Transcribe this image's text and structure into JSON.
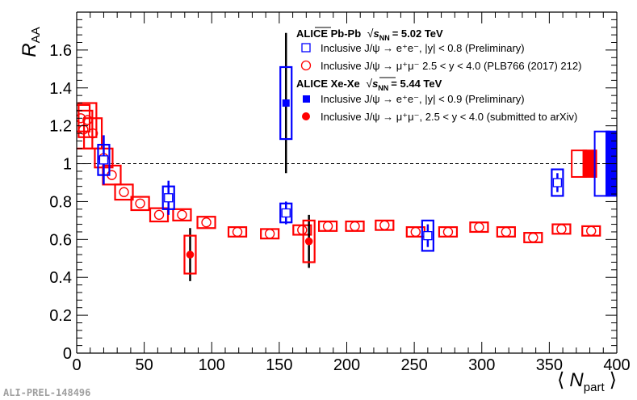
{
  "chart_data": {
    "type": "scatter",
    "xlabel_prefix": "⟨",
    "xlabel_var": "N",
    "xlabel_sub": "part",
    "xlabel_suffix": "⟩",
    "ylabel_var": "R",
    "ylabel_sub": "AA",
    "xlim": [
      0,
      400
    ],
    "ylim": [
      0,
      1.8
    ],
    "xticks": [
      0,
      50,
      100,
      150,
      200,
      250,
      300,
      350,
      400
    ],
    "yticks": [
      0,
      0.2,
      0.4,
      0.6,
      0.8,
      1,
      1.2,
      1.4,
      1.6
    ],
    "reference_line": 1,
    "watermark": "ALI-PREL-148496",
    "colors": {
      "red": "#ff0000",
      "blue": "#0000ff",
      "axis": "#000000"
    },
    "legend": {
      "header1": {
        "prefix": "ALICE Pb-Pb",
        "sqrt_sub": "NN",
        "suffix": "= 5.02 TeV"
      },
      "entry1": "Inclusive J/ψ → e⁺e⁻, |y| < 0.8 (Preliminary)",
      "entry2": "Inclusive J/ψ → μ⁺μ⁻ 2.5 < y < 4.0 (PLB766 (2017) 212)",
      "header2": {
        "prefix": "ALICE Xe-Xe",
        "sqrt_sub": "NN",
        "suffix": "= 5.44 TeV"
      },
      "entry3": "Inclusive J/ψ → e⁺e⁻, |y| < 0.9 (Preliminary)",
      "entry4": "Inclusive J/ψ → μ⁺μ⁻, 2.5 < y < 4.0 (submitted to arXiv)"
    },
    "series": [
      {
        "name": "Pb-Pb 5.02 TeV, J/ψ → μ⁺μ⁻, 2.5 < y < 4.0",
        "color": "#ff0000",
        "marker": "open-circle",
        "points": [
          {
            "x": 3,
            "y": 1.24,
            "sys": 0.07
          },
          {
            "x": 5,
            "y": 1.18,
            "sys": 0.1
          },
          {
            "x": 8,
            "y": 1.23,
            "sys": 0.09
          },
          {
            "x": 12,
            "y": 1.16,
            "sys": 0.08
          },
          {
            "x": 20,
            "y": 1.03,
            "sys": 0.05
          },
          {
            "x": 26,
            "y": 0.94,
            "sys": 0.05
          },
          {
            "x": 35,
            "y": 0.85,
            "sys": 0.04
          },
          {
            "x": 47,
            "y": 0.79,
            "sys": 0.035
          },
          {
            "x": 61,
            "y": 0.73,
            "sys": 0.035
          },
          {
            "x": 78,
            "y": 0.73,
            "sys": 0.03
          },
          {
            "x": 96,
            "y": 0.69,
            "sys": 0.03
          },
          {
            "x": 119,
            "y": 0.64,
            "sys": 0.025
          },
          {
            "x": 143,
            "y": 0.63,
            "sys": 0.025
          },
          {
            "x": 167,
            "y": 0.65,
            "sys": 0.025
          },
          {
            "x": 186,
            "y": 0.67,
            "sys": 0.025
          },
          {
            "x": 206,
            "y": 0.67,
            "sys": 0.025
          },
          {
            "x": 228,
            "y": 0.675,
            "sys": 0.025
          },
          {
            "x": 251,
            "y": 0.64,
            "sys": 0.025
          },
          {
            "x": 275,
            "y": 0.64,
            "sys": 0.025
          },
          {
            "x": 298,
            "y": 0.665,
            "sys": 0.025
          },
          {
            "x": 318,
            "y": 0.64,
            "sys": 0.025
          },
          {
            "x": 338,
            "y": 0.61,
            "sys": 0.025
          },
          {
            "x": 359,
            "y": 0.655,
            "sys": 0.025
          },
          {
            "x": 381,
            "y": 0.645,
            "sys": 0.025
          }
        ]
      },
      {
        "name": "Pb-Pb 5.02 TeV, J/ψ → e⁺e⁻, |y| < 0.8 (Preliminary)",
        "color": "#0000ff",
        "marker": "open-square",
        "points": [
          {
            "x": 20,
            "y": 1.02,
            "stat": 0.13,
            "sys": 0.08
          },
          {
            "x": 68,
            "y": 0.82,
            "stat": 0.09,
            "sys": 0.06
          },
          {
            "x": 155,
            "y": 0.74,
            "stat": 0.06,
            "sys": 0.05
          },
          {
            "x": 260,
            "y": 0.62,
            "stat": 0.06,
            "sys": 0.08
          },
          {
            "x": 356,
            "y": 0.9,
            "stat": 0.05,
            "sys": 0.07
          }
        ]
      },
      {
        "name": "Xe-Xe 5.44 TeV, J/ψ → e⁺e⁻, |y| < 0.9 (Preliminary)",
        "color": "#0000ff",
        "marker": "filled-square",
        "points": [
          {
            "x": 155,
            "y": 1.32,
            "stat": 0.37,
            "sys": 0.19
          }
        ]
      },
      {
        "name": "Xe-Xe 5.44 TeV, J/ψ → μ⁺μ⁻, 2.5 < y < 4.0",
        "color": "#ff0000",
        "marker": "filled-circle",
        "points": [
          {
            "x": 84,
            "y": 0.52,
            "stat": 0.14,
            "sys": 0.1
          },
          {
            "x": 172,
            "y": 0.59,
            "stat": 0.14,
            "sys": 0.11
          }
        ]
      }
    ],
    "global_uncertainty_boxes": [
      {
        "series": "Pb-Pb μ⁺μ⁻",
        "color": "#ff0000",
        "fill": false,
        "x": 372,
        "y": 1,
        "half": 0.07
      },
      {
        "series": "Xe-Xe μ⁺μ⁻",
        "color": "#ff0000",
        "fill": true,
        "x": 380,
        "y": 1,
        "half": 0.07
      },
      {
        "series": "Pb-Pb e⁺e⁻",
        "color": "#0000ff",
        "fill": false,
        "x": 389,
        "y": 1,
        "half": 0.17
      },
      {
        "series": "Xe-Xe e⁺e⁻",
        "color": "#0000ff",
        "fill": true,
        "x": 397,
        "y": 1,
        "half": 0.17
      }
    ]
  }
}
